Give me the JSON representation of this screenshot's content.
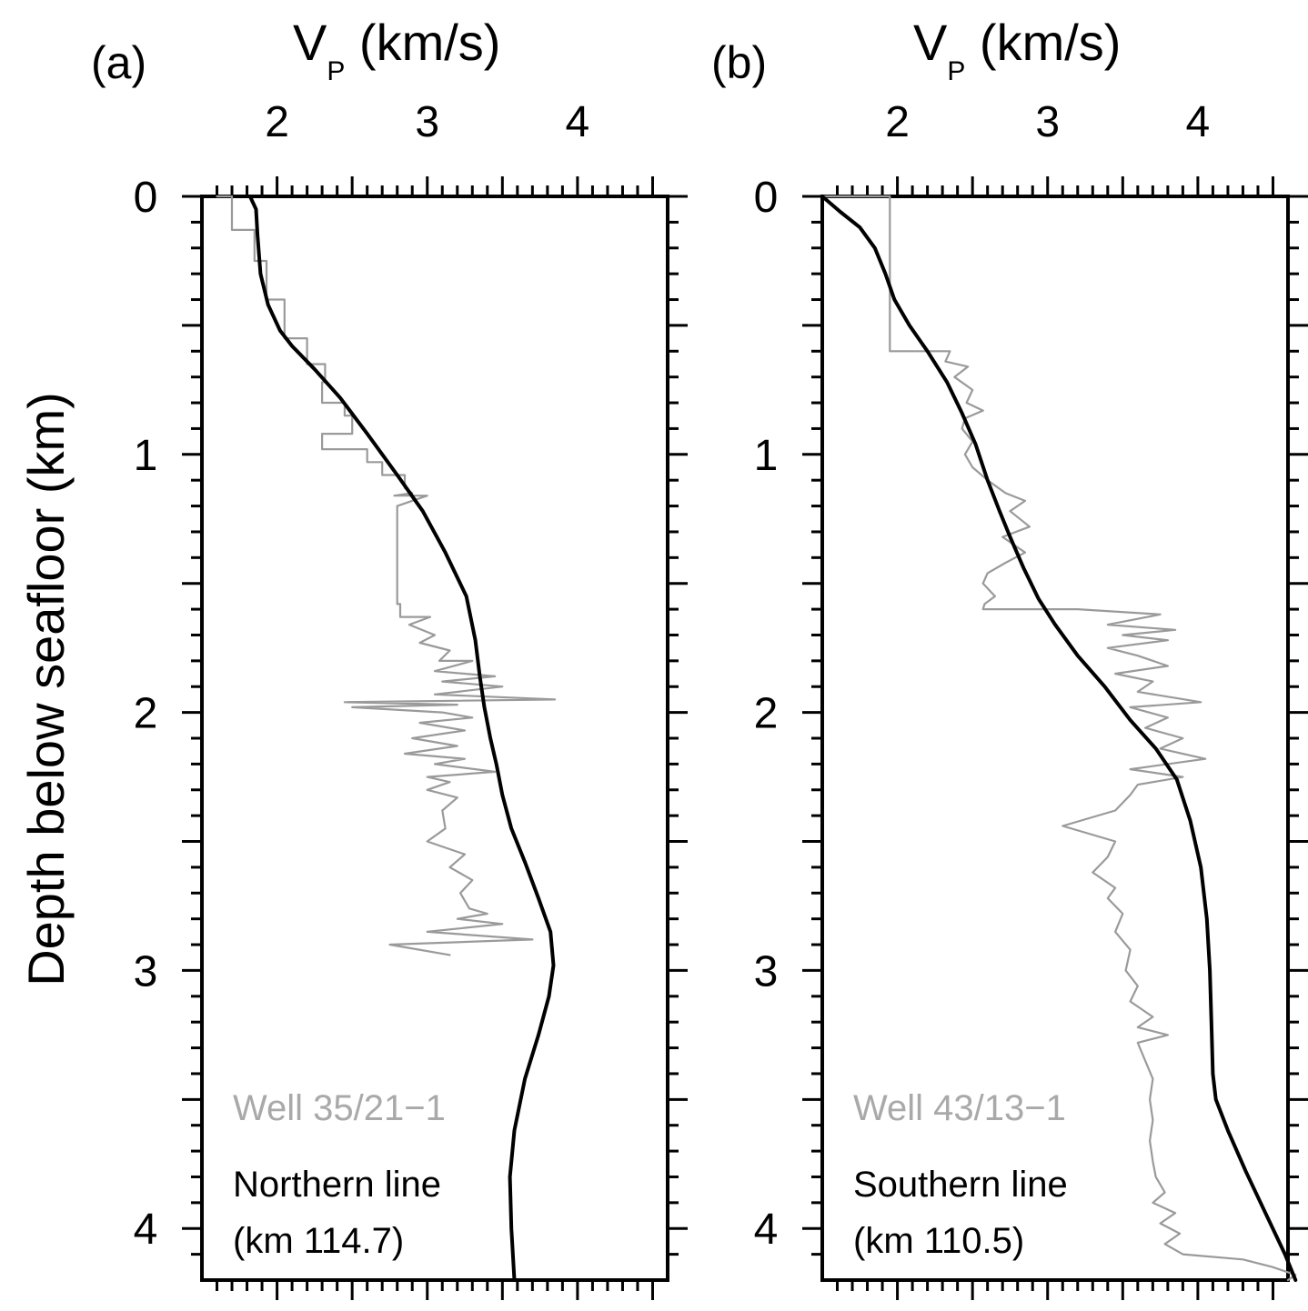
{
  "ylabel": "Depth below seafloor (km)",
  "chart_data": [
    {
      "type": "line",
      "panel_label": "(a)",
      "xlabel_main": "V",
      "xlabel_sub": "P",
      "xlabel_unit": " (km/s)",
      "xlim": [
        1.5,
        4.6
      ],
      "ylim": [
        0,
        4.2
      ],
      "y_inverted": true,
      "x_ticks": [
        "2",
        "3",
        "4"
      ],
      "y_ticks": [
        "0",
        "1",
        "2",
        "3",
        "4"
      ],
      "well_label": "Well 35/21−1",
      "line_label": "Northern line",
      "line_km": "(km 114.7)",
      "colors": {
        "model": "#000000",
        "well": "#9a9a9a"
      },
      "series": [
        {
          "name": "Northern line",
          "points": [
            [
              1.82,
              0
            ],
            [
              1.86,
              0.05
            ],
            [
              1.87,
              0.15
            ],
            [
              1.89,
              0.3
            ],
            [
              1.94,
              0.42
            ],
            [
              2.02,
              0.52
            ],
            [
              2.1,
              0.58
            ],
            [
              2.25,
              0.67
            ],
            [
              2.42,
              0.78
            ],
            [
              2.6,
              0.92
            ],
            [
              2.8,
              1.08
            ],
            [
              2.97,
              1.22
            ],
            [
              3.12,
              1.38
            ],
            [
              3.26,
              1.55
            ],
            [
              3.32,
              1.72
            ],
            [
              3.35,
              1.86
            ],
            [
              3.38,
              1.98
            ],
            [
              3.42,
              2.1
            ],
            [
              3.46,
              2.2
            ],
            [
              3.5,
              2.32
            ],
            [
              3.56,
              2.45
            ],
            [
              3.65,
              2.58
            ],
            [
              3.74,
              2.72
            ],
            [
              3.82,
              2.85
            ],
            [
              3.84,
              2.98
            ],
            [
              3.81,
              3.1
            ],
            [
              3.74,
              3.25
            ],
            [
              3.65,
              3.42
            ],
            [
              3.58,
              3.62
            ],
            [
              3.55,
              3.8
            ],
            [
              3.56,
              4.0
            ],
            [
              3.58,
              4.2
            ]
          ]
        },
        {
          "name": "Well 35/21−1",
          "points": [
            [
              1.6,
              0
            ],
            [
              1.7,
              0
            ],
            [
              1.7,
              0.13
            ],
            [
              1.85,
              0.13
            ],
            [
              1.85,
              0.25
            ],
            [
              1.93,
              0.25
            ],
            [
              1.93,
              0.4
            ],
            [
              2.05,
              0.4
            ],
            [
              2.05,
              0.55
            ],
            [
              2.2,
              0.55
            ],
            [
              2.2,
              0.65
            ],
            [
              2.32,
              0.65
            ],
            [
              2.32,
              0.72
            ],
            [
              2.3,
              0.72
            ],
            [
              2.3,
              0.8
            ],
            [
              2.45,
              0.8
            ],
            [
              2.45,
              0.85
            ],
            [
              2.5,
              0.85
            ],
            [
              2.5,
              0.92
            ],
            [
              2.3,
              0.92
            ],
            [
              2.3,
              0.98
            ],
            [
              2.6,
              0.98
            ],
            [
              2.6,
              1.03
            ],
            [
              2.7,
              1.03
            ],
            [
              2.7,
              1.08
            ],
            [
              2.85,
              1.08
            ],
            [
              2.85,
              1.13
            ],
            [
              2.9,
              1.15
            ],
            [
              2.78,
              1.16
            ],
            [
              3.0,
              1.16
            ],
            [
              2.8,
              1.2
            ],
            [
              2.8,
              1.58
            ],
            [
              2.82,
              1.58
            ],
            [
              2.82,
              1.63
            ],
            [
              3.02,
              1.63
            ],
            [
              2.88,
              1.66
            ],
            [
              3.05,
              1.7
            ],
            [
              2.95,
              1.73
            ],
            [
              3.15,
              1.76
            ],
            [
              3.08,
              1.8
            ],
            [
              3.3,
              1.8
            ],
            [
              3.05,
              1.84
            ],
            [
              3.45,
              1.86
            ],
            [
              3.1,
              1.88
            ],
            [
              3.5,
              1.9
            ],
            [
              3.05,
              1.93
            ],
            [
              3.85,
              1.95
            ],
            [
              2.45,
              1.96
            ],
            [
              3.2,
              1.97
            ],
            [
              2.5,
              1.98
            ],
            [
              3.1,
              2.0
            ],
            [
              3.3,
              2.02
            ],
            [
              2.95,
              2.04
            ],
            [
              3.25,
              2.07
            ],
            [
              2.9,
              2.1
            ],
            [
              3.2,
              2.13
            ],
            [
              2.85,
              2.16
            ],
            [
              3.25,
              2.18
            ],
            [
              3.05,
              2.2
            ],
            [
              3.45,
              2.23
            ],
            [
              3.0,
              2.25
            ],
            [
              3.15,
              2.27
            ],
            [
              3.0,
              2.3
            ],
            [
              3.2,
              2.33
            ],
            [
              3.1,
              2.38
            ],
            [
              3.12,
              2.45
            ],
            [
              3.0,
              2.5
            ],
            [
              3.25,
              2.55
            ],
            [
              3.15,
              2.6
            ],
            [
              3.3,
              2.65
            ],
            [
              3.22,
              2.7
            ],
            [
              3.28,
              2.76
            ],
            [
              3.4,
              2.78
            ],
            [
              3.2,
              2.8
            ],
            [
              3.5,
              2.82
            ],
            [
              3.0,
              2.85
            ],
            [
              3.7,
              2.88
            ],
            [
              2.75,
              2.9
            ],
            [
              3.15,
              2.94
            ]
          ]
        }
      ]
    },
    {
      "type": "line",
      "panel_label": "(b)",
      "xlabel_main": "V",
      "xlabel_sub": "P",
      "xlabel_unit": " (km/s)",
      "xlim": [
        1.5,
        4.6
      ],
      "ylim": [
        0,
        4.2
      ],
      "y_inverted": true,
      "x_ticks": [
        "2",
        "3",
        "4"
      ],
      "y_ticks": [
        "0",
        "1",
        "2",
        "3",
        "4"
      ],
      "well_label": "Well 43/13−1",
      "line_label": "Southern line",
      "line_km": "(km 110.5)",
      "colors": {
        "model": "#000000",
        "well": "#9a9a9a"
      },
      "series": [
        {
          "name": "Southern line",
          "points": [
            [
              1.5,
              0
            ],
            [
              1.62,
              0.06
            ],
            [
              1.75,
              0.12
            ],
            [
              1.85,
              0.2
            ],
            [
              1.92,
              0.3
            ],
            [
              1.98,
              0.4
            ],
            [
              2.08,
              0.5
            ],
            [
              2.2,
              0.6
            ],
            [
              2.33,
              0.72
            ],
            [
              2.43,
              0.84
            ],
            [
              2.52,
              0.96
            ],
            [
              2.6,
              1.1
            ],
            [
              2.68,
              1.22
            ],
            [
              2.75,
              1.32
            ],
            [
              2.84,
              1.44
            ],
            [
              2.94,
              1.56
            ],
            [
              3.05,
              1.66
            ],
            [
              3.2,
              1.78
            ],
            [
              3.38,
              1.9
            ],
            [
              3.55,
              2.03
            ],
            [
              3.72,
              2.14
            ],
            [
              3.86,
              2.26
            ],
            [
              3.95,
              2.42
            ],
            [
              4.02,
              2.6
            ],
            [
              4.06,
              2.8
            ],
            [
              4.08,
              3.0
            ],
            [
              4.09,
              3.2
            ],
            [
              4.1,
              3.4
            ],
            [
              4.12,
              3.5
            ],
            [
              4.2,
              3.62
            ],
            [
              4.32,
              3.78
            ],
            [
              4.45,
              3.94
            ],
            [
              4.58,
              4.1
            ],
            [
              4.65,
              4.2
            ]
          ]
        },
        {
          "name": "Well 43/13−1",
          "points": [
            [
              1.5,
              0
            ],
            [
              1.95,
              0
            ],
            [
              1.95,
              0.6
            ],
            [
              2.35,
              0.6
            ],
            [
              2.32,
              0.64
            ],
            [
              2.47,
              0.66
            ],
            [
              2.38,
              0.7
            ],
            [
              2.5,
              0.75
            ],
            [
              2.46,
              0.8
            ],
            [
              2.57,
              0.83
            ],
            [
              2.45,
              0.86
            ],
            [
              2.43,
              0.9
            ],
            [
              2.5,
              0.95
            ],
            [
              2.45,
              1.0
            ],
            [
              2.5,
              1.05
            ],
            [
              2.6,
              1.1
            ],
            [
              2.72,
              1.15
            ],
            [
              2.85,
              1.18
            ],
            [
              2.75,
              1.22
            ],
            [
              2.88,
              1.28
            ],
            [
              2.7,
              1.32
            ],
            [
              2.85,
              1.38
            ],
            [
              2.72,
              1.42
            ],
            [
              2.6,
              1.46
            ],
            [
              2.57,
              1.5
            ],
            [
              2.65,
              1.55
            ],
            [
              2.58,
              1.58
            ],
            [
              2.57,
              1.6
            ],
            [
              3.2,
              1.6
            ],
            [
              3.75,
              1.62
            ],
            [
              3.4,
              1.66
            ],
            [
              3.85,
              1.68
            ],
            [
              3.5,
              1.7
            ],
            [
              3.8,
              1.72
            ],
            [
              3.4,
              1.75
            ],
            [
              3.6,
              1.78
            ],
            [
              3.8,
              1.82
            ],
            [
              3.45,
              1.85
            ],
            [
              3.7,
              1.88
            ],
            [
              3.6,
              1.92
            ],
            [
              4.02,
              1.96
            ],
            [
              3.55,
              1.98
            ],
            [
              3.8,
              2.02
            ],
            [
              3.65,
              2.06
            ],
            [
              3.9,
              2.1
            ],
            [
              3.75,
              2.14
            ],
            [
              4.05,
              2.18
            ],
            [
              3.55,
              2.22
            ],
            [
              3.9,
              2.25
            ],
            [
              3.6,
              2.28
            ],
            [
              3.55,
              2.32
            ],
            [
              3.45,
              2.38
            ],
            [
              3.1,
              2.44
            ],
            [
              3.45,
              2.5
            ],
            [
              3.4,
              2.56
            ],
            [
              3.3,
              2.62
            ],
            [
              3.45,
              2.68
            ],
            [
              3.4,
              2.72
            ],
            [
              3.5,
              2.78
            ],
            [
              3.45,
              2.85
            ],
            [
              3.55,
              2.92
            ],
            [
              3.52,
              3.0
            ],
            [
              3.6,
              3.06
            ],
            [
              3.55,
              3.12
            ],
            [
              3.7,
              3.18
            ],
            [
              3.6,
              3.22
            ],
            [
              3.8,
              3.25
            ],
            [
              3.6,
              3.28
            ],
            [
              3.65,
              3.35
            ],
            [
              3.7,
              3.42
            ],
            [
              3.68,
              3.5
            ],
            [
              3.7,
              3.58
            ],
            [
              3.68,
              3.66
            ],
            [
              3.7,
              3.74
            ],
            [
              3.72,
              3.8
            ],
            [
              3.78,
              3.86
            ],
            [
              3.7,
              3.9
            ],
            [
              3.85,
              3.94
            ],
            [
              3.75,
              3.98
            ],
            [
              3.88,
              4.02
            ],
            [
              3.78,
              4.06
            ],
            [
              3.9,
              4.1
            ],
            [
              4.3,
              4.12
            ],
            [
              4.5,
              4.15
            ],
            [
              4.65,
              4.18
            ],
            [
              4.6,
              4.2
            ]
          ]
        }
      ]
    }
  ]
}
